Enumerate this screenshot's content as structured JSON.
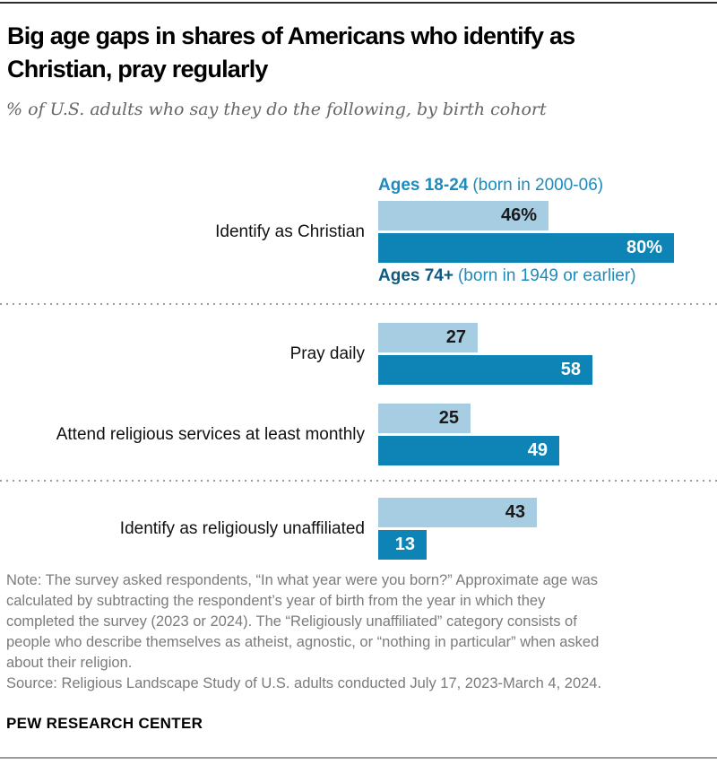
{
  "header": {
    "title_line1": "Big age gaps in shares of Americans who identify as",
    "title_line2": "Christian, pray regularly",
    "subtitle": "% of U.S. adults who say they do the following, by birth cohort"
  },
  "chart_data": {
    "type": "bar",
    "orientation": "horizontal",
    "value_unit": "percent of U.S. adults",
    "xlim": [
      0,
      100
    ],
    "grid": false,
    "legend_position": "around-first-group",
    "series": [
      {
        "name": "Ages 18-24",
        "qualifier": "(born in 2000-06)",
        "color": "#a6cde2",
        "label_text_color": "#1a1a1a",
        "name_color": "#1d8bbd"
      },
      {
        "name": "Ages 74+",
        "qualifier": "(born in 1949 or earlier)",
        "color": "#0d84b5",
        "label_text_color": "#ffffff",
        "name_color": "#0e5a80"
      }
    ],
    "categories": [
      "Identify as Christian",
      "Pray daily",
      "Attend religious services at least monthly",
      "Identify as religiously unaffiliated"
    ],
    "groups": [
      {
        "category": "Identify as Christian",
        "values": [
          46,
          80
        ],
        "labels": [
          "46%",
          "80%"
        ]
      },
      {
        "category": "Pray daily",
        "values": [
          27,
          58
        ],
        "labels": [
          "27",
          "58"
        ]
      },
      {
        "category": "Attend religious services at least monthly",
        "values": [
          25,
          49
        ],
        "labels": [
          "25",
          "49"
        ]
      },
      {
        "category": "Identify as religiously unaffiliated",
        "values": [
          43,
          13
        ],
        "labels": [
          "43",
          "13"
        ]
      }
    ]
  },
  "note": {
    "lines": [
      "Note: The survey asked respondents, “In what year were you born?” Approximate age was",
      "calculated by subtracting the respondent’s year of birth from the year in which they",
      "completed the survey (2023 or 2024). The “Religiously unaffiliated” category consists of",
      "people who describe themselves as atheist, agnostic, or “nothing in particular” when asked",
      "about their religion."
    ],
    "source": "Source: Religious Landscape Study of U.S. adults conducted July 17, 2023-March 4, 2024."
  },
  "footer": {
    "brand": "PEW RESEARCH CENTER"
  },
  "colors": {
    "light_bar": "#a6cde2",
    "dark_bar": "#0d84b5",
    "medium_blue_text": "#1d8bbd",
    "dark_blue_text": "#0e5a80",
    "note_gray": "#7b7b7b",
    "subtitle_gray": "#666666",
    "separator_gray": "#9d9d9d"
  }
}
